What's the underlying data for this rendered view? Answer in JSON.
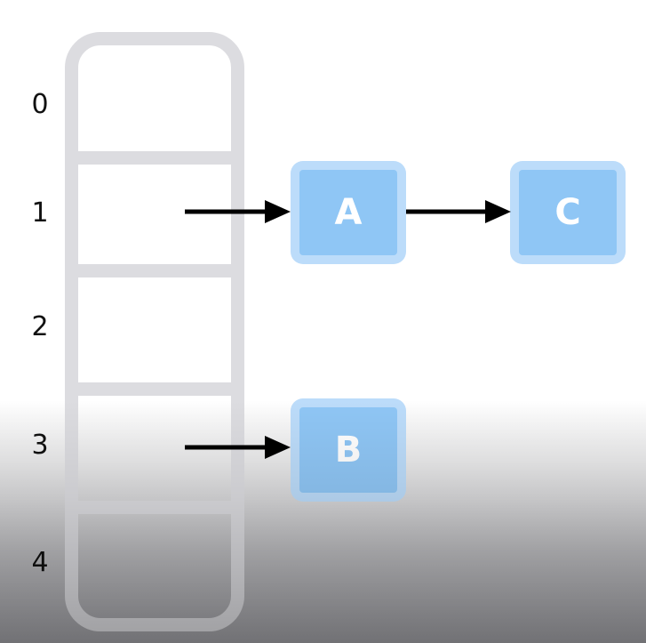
{
  "indices": [
    "0",
    "1",
    "2",
    "3",
    "4"
  ],
  "nodes": {
    "a": "A",
    "b": "B",
    "c": "C"
  },
  "colors": {
    "table_border": "#dcdce0",
    "node_outer": "#bcdcfa",
    "node_inner": "#8fc6f5",
    "node_text": "#ffffff",
    "arrow": "#000000"
  }
}
